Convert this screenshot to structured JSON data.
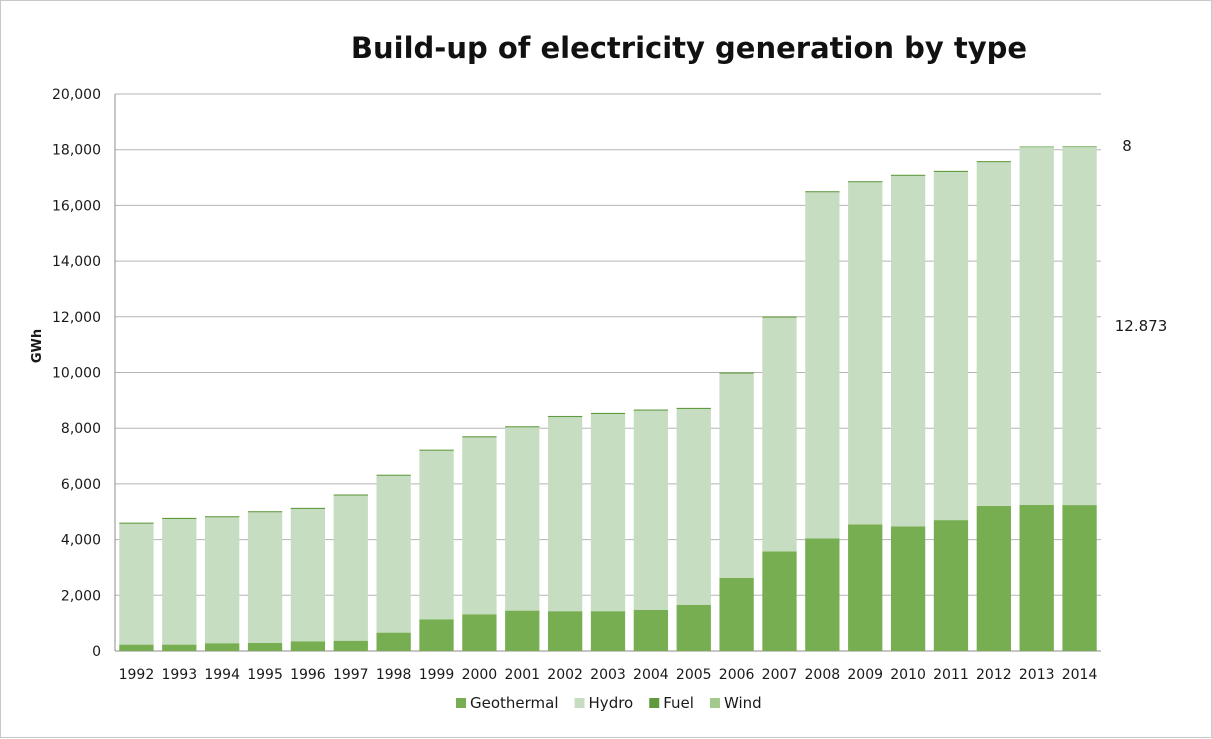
{
  "chart_data": {
    "type": "bar",
    "stacked": true,
    "title": "Build-up of electricity generation by type",
    "xlabel": "",
    "ylabel": "GWh",
    "ylim": [
      0,
      20000
    ],
    "yticks": [
      0,
      2000,
      4000,
      6000,
      8000,
      10000,
      12000,
      14000,
      16000,
      18000,
      20000
    ],
    "ytick_labels": [
      "0",
      "2,000",
      "4,000",
      "6,000",
      "8,000",
      "10,000",
      "12,000",
      "14,000",
      "16,000",
      "18,000",
      "20,000"
    ],
    "grid": true,
    "legend_position": "bottom",
    "categories": [
      "1992",
      "1993",
      "1994",
      "1995",
      "1996",
      "1997",
      "1998",
      "1999",
      "2000",
      "2001",
      "2002",
      "2003",
      "2004",
      "2005",
      "2006",
      "2007",
      "2008",
      "2009",
      "2010",
      "2011",
      "2012",
      "2013",
      "2014"
    ],
    "series": [
      {
        "name": "Geothermal",
        "color": "#78ae52",
        "values": [
          230,
          230,
          280,
          290,
          350,
          370,
          660,
          1140,
          1320,
          1450,
          1430,
          1430,
          1480,
          1660,
          2630,
          3580,
          4040,
          4550,
          4470,
          4700,
          5210,
          5250,
          5240
        ]
      },
      {
        "name": "Hydro",
        "color": "#c6ddc1",
        "values": [
          4340,
          4510,
          4520,
          4690,
          4750,
          5210,
          5630,
          6050,
          6350,
          6580,
          6970,
          7080,
          7150,
          7030,
          7330,
          8390,
          12430,
          12280,
          12590,
          12500,
          12340,
          12860,
          12873
        ]
      },
      {
        "name": "Fuel",
        "color": "#5f9a3d",
        "values": [
          40,
          40,
          40,
          40,
          40,
          40,
          40,
          40,
          40,
          40,
          40,
          40,
          40,
          40,
          40,
          40,
          40,
          40,
          40,
          40,
          40,
          10,
          10
        ]
      },
      {
        "name": "Wind",
        "color": "#a3c98b",
        "values": [
          0,
          0,
          0,
          0,
          0,
          0,
          0,
          0,
          0,
          0,
          0,
          0,
          0,
          0,
          0,
          0,
          0,
          0,
          0,
          0,
          0,
          5,
          8
        ]
      }
    ],
    "annotations": [
      {
        "text": "8",
        "series": "Wind",
        "category": "2014"
      },
      {
        "text": "12.873",
        "series": "Hydro",
        "category": "2014"
      }
    ]
  }
}
